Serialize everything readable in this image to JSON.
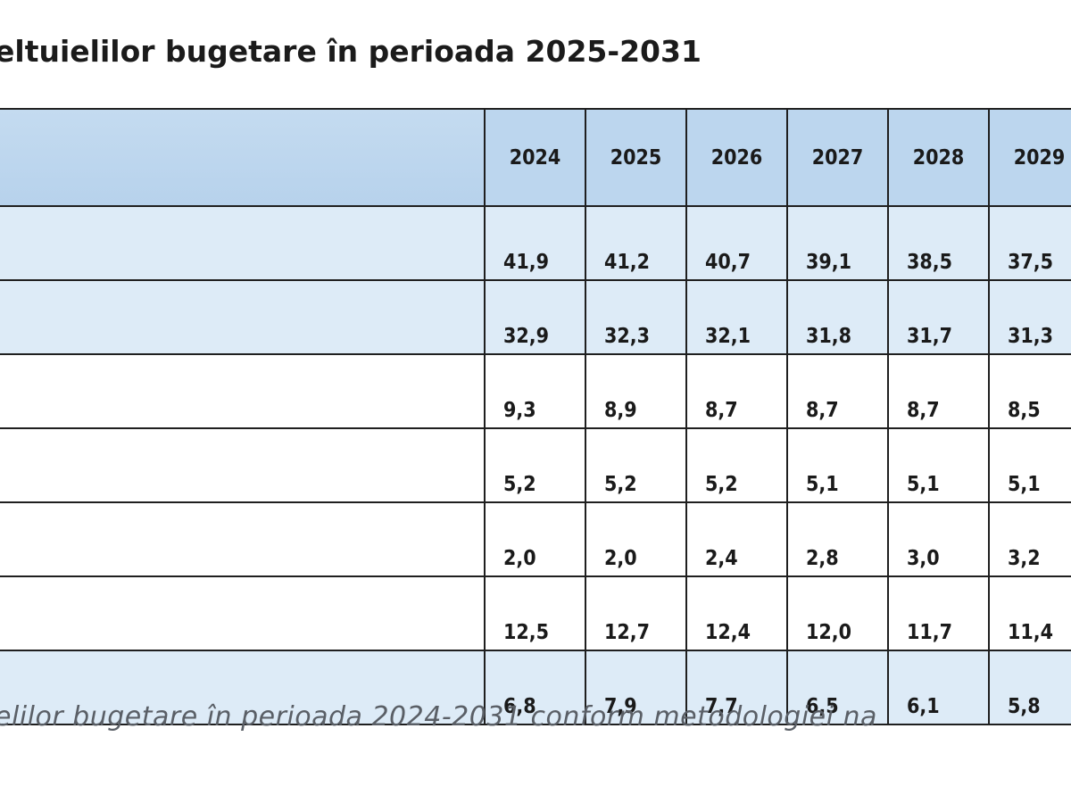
{
  "title": "eltuielilor bugetare în perioada 2025-2031",
  "caption": "elilor bugetare în perioada 2024-2031 conform metodologiei na",
  "table": {
    "years": [
      "2024",
      "2025",
      "2026",
      "2027",
      "2028",
      "2029"
    ],
    "rows": [
      {
        "values": [
          "41,9",
          "41,2",
          "40,7",
          "39,1",
          "38,5",
          "37,5"
        ]
      },
      {
        "values": [
          "32,9",
          "32,3",
          "32,1",
          "31,8",
          "31,7",
          "31,3"
        ]
      },
      {
        "values": [
          "9,3",
          "8,9",
          "8,7",
          "8,7",
          "8,7",
          "8,5"
        ]
      },
      {
        "values": [
          "5,2",
          "5,2",
          "5,2",
          "5,1",
          "5,1",
          "5,1"
        ]
      },
      {
        "values": [
          "2,0",
          "2,0",
          "2,4",
          "2,8",
          "3,0",
          "3,2"
        ]
      },
      {
        "values": [
          "12,5",
          "12,7",
          "12,4",
          "12,0",
          "11,7",
          "11,4"
        ]
      },
      {
        "values": [
          "6,8",
          "7,9",
          "7,7",
          "6,5",
          "6,1",
          "5,8"
        ]
      }
    ]
  }
}
